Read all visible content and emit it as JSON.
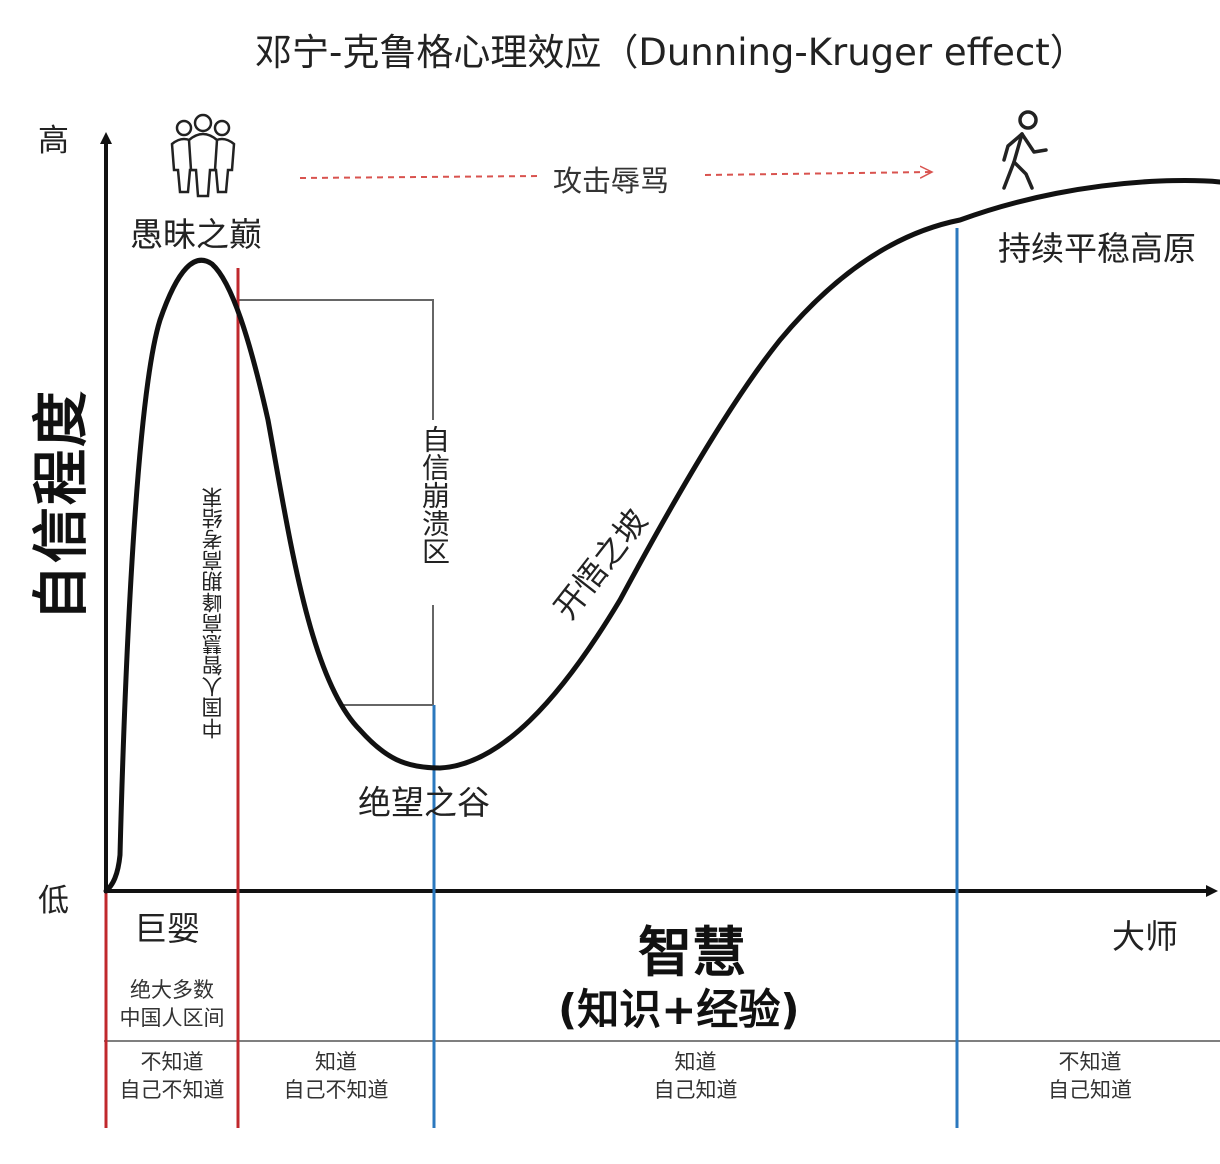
{
  "title": "邓宁-克鲁格心理效应（Dunning-Kruger effect）",
  "y_axis": {
    "label": "自信程度",
    "high": "高",
    "low": "低"
  },
  "x_axis": {
    "label": "智慧",
    "sublabel": "(知识+经验)",
    "start": "巨婴",
    "end": "大师"
  },
  "stages": {
    "peak": "愚昧之巅",
    "valley": "绝望之谷",
    "slope": "开悟之坡",
    "plateau": "持续平稳高原"
  },
  "annotations": {
    "attack": "攻击辱骂",
    "collapse": "自信崩溃区",
    "gaokao": "中国人智慧高峰期高考结束"
  },
  "majority": {
    "line1": "绝大多数",
    "line2": "中国人区间"
  },
  "quadrants": [
    {
      "line1": "不知道",
      "line2": "自己不知道"
    },
    {
      "line1": "知道",
      "line2": "自己不知道"
    },
    {
      "line1": "知道",
      "line2": "自己知道"
    },
    {
      "line1": "不知道",
      "line2": "自己知道"
    }
  ],
  "colors": {
    "red_line": "#c0282d",
    "blue_line": "#2b78be",
    "curve": "#111111",
    "dashed": "#d9534f"
  },
  "icons": [
    "crowd-icon",
    "walking-person-icon"
  ]
}
